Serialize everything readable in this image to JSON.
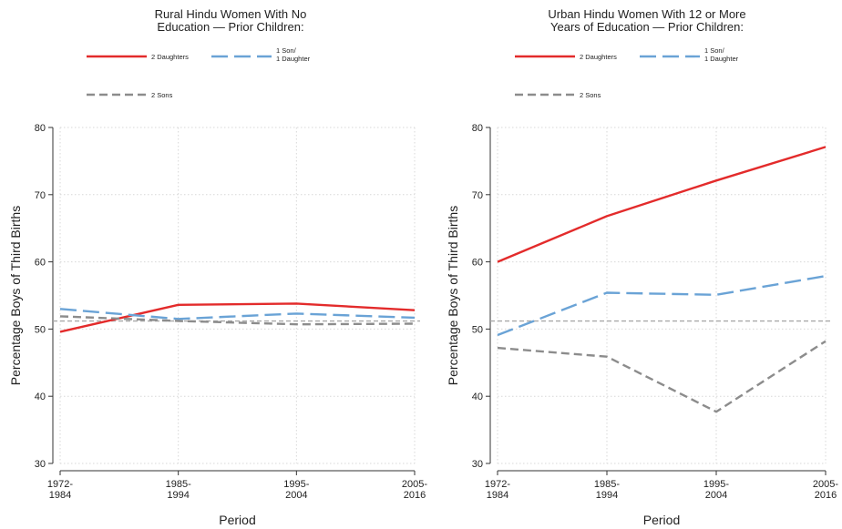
{
  "colors": {
    "two_daughters": "#e32b2b",
    "one_son_one_daughter": "#6aa3d6",
    "two_sons": "#8c8c8c",
    "reference_line": "#a8a8a8",
    "grid": "#d7d7d7"
  },
  "chart_data": [
    {
      "type": "line",
      "title": [
        "Rural Hindu Women With No",
        "Education — Prior Children:"
      ],
      "xlabel": "Period",
      "ylabel": "Percentage Boys of Third Births",
      "categories": [
        [
          "1972-",
          "1984"
        ],
        [
          "1985-",
          "1994"
        ],
        [
          "1995-",
          "2004"
        ],
        [
          "2005-",
          "2016"
        ]
      ],
      "ylim": [
        30,
        80
      ],
      "yticks": [
        "30",
        "40",
        "50",
        "60",
        "70",
        "80"
      ],
      "grid": true,
      "reference_line": 51.2,
      "legend_position": "top",
      "series": [
        {
          "name": "2 Daughters",
          "color_key": "two_daughters",
          "style": "solid",
          "values": [
            49.6,
            53.6,
            53.8,
            52.8
          ]
        },
        {
          "name": [
            "1 Son/",
            "1 Daughter"
          ],
          "color_key": "one_son_one_daughter",
          "style": "longdash",
          "values": [
            53.0,
            51.5,
            52.3,
            51.7
          ]
        },
        {
          "name": "2 Sons",
          "color_key": "two_sons",
          "style": "dash",
          "values": [
            51.9,
            51.2,
            50.7,
            50.8
          ]
        }
      ]
    },
    {
      "type": "line",
      "title": [
        "Urban Hindu Women With 12 or More",
        "Years of Education — Prior Children:"
      ],
      "xlabel": "Period",
      "ylabel": "Percentage Boys of Third Births",
      "categories": [
        [
          "1972-",
          "1984"
        ],
        [
          "1985-",
          "1994"
        ],
        [
          "1995-",
          "2004"
        ],
        [
          "2005-",
          "2016"
        ]
      ],
      "ylim": [
        30,
        80
      ],
      "yticks": [
        "30",
        "40",
        "50",
        "60",
        "70",
        "80"
      ],
      "grid": true,
      "reference_line": 51.2,
      "legend_position": "top",
      "series": [
        {
          "name": "2 Daughters",
          "color_key": "two_daughters",
          "style": "solid",
          "values": [
            60.0,
            66.8,
            72.1,
            77.1
          ]
        },
        {
          "name": [
            "1 Son/",
            "1 Daughter"
          ],
          "color_key": "one_son_one_daughter",
          "style": "longdash",
          "values": [
            49.1,
            55.4,
            55.1,
            57.9
          ]
        },
        {
          "name": "2 Sons",
          "color_key": "two_sons",
          "style": "dash",
          "values": [
            47.2,
            45.9,
            37.7,
            48.2
          ]
        }
      ]
    }
  ]
}
